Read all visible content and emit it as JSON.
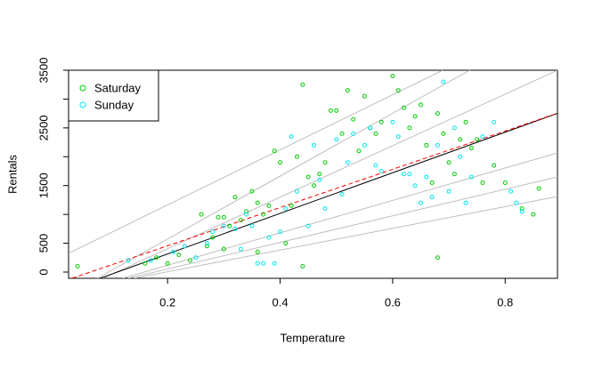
{
  "chart_data": {
    "type": "scatter",
    "xlabel": "Temperature",
    "ylabel": "Rentals",
    "xlim": [
      0.024,
      0.893
    ],
    "ylim": [
      -108,
      3500
    ],
    "xticks": [
      0.2,
      0.4,
      0.6,
      0.8
    ],
    "yticks": [
      0,
      500,
      1500,
      2500,
      3500
    ],
    "yticks_minor": [
      1000,
      2000,
      3000
    ],
    "legend": "top-left",
    "series": [
      {
        "name": "Saturday",
        "color": "#00cd00",
        "x": [
          0.04,
          0.16,
          0.18,
          0.2,
          0.22,
          0.24,
          0.26,
          0.27,
          0.28,
          0.29,
          0.3,
          0.31,
          0.32,
          0.33,
          0.34,
          0.35,
          0.36,
          0.37,
          0.38,
          0.39,
          0.4,
          0.41,
          0.42,
          0.43,
          0.44,
          0.45,
          0.46,
          0.47,
          0.48,
          0.49,
          0.5,
          0.51,
          0.52,
          0.53,
          0.54,
          0.55,
          0.56,
          0.57,
          0.58,
          0.6,
          0.61,
          0.62,
          0.63,
          0.64,
          0.65,
          0.66,
          0.67,
          0.68,
          0.68,
          0.69,
          0.7,
          0.71,
          0.72,
          0.73,
          0.74,
          0.75,
          0.76,
          0.78,
          0.8,
          0.83,
          0.85,
          0.86,
          0.44,
          0.36,
          0.3
        ],
        "values": [
          100,
          150,
          250,
          150,
          300,
          200,
          1000,
          450,
          600,
          950,
          950,
          800,
          1300,
          900,
          1050,
          1400,
          1200,
          1000,
          1150,
          2100,
          1900,
          500,
          1150,
          2000,
          3250,
          1650,
          1500,
          1700,
          1900,
          2800,
          2800,
          2400,
          3150,
          2650,
          2100,
          3050,
          2500,
          2400,
          2600,
          3400,
          3150,
          2850,
          2500,
          2700,
          2900,
          2200,
          1550,
          2750,
          250,
          2400,
          1900,
          1700,
          2300,
          2600,
          2150,
          2300,
          1550,
          1850,
          1550,
          1100,
          1000,
          1450,
          100,
          350,
          400
        ]
      },
      {
        "name": "Sunday",
        "color": "#00e5ee",
        "x": [
          0.13,
          0.17,
          0.21,
          0.23,
          0.25,
          0.27,
          0.28,
          0.3,
          0.32,
          0.33,
          0.34,
          0.35,
          0.36,
          0.37,
          0.38,
          0.39,
          0.4,
          0.41,
          0.42,
          0.43,
          0.45,
          0.46,
          0.47,
          0.48,
          0.5,
          0.51,
          0.52,
          0.53,
          0.55,
          0.56,
          0.57,
          0.58,
          0.6,
          0.61,
          0.62,
          0.63,
          0.64,
          0.65,
          0.66,
          0.67,
          0.68,
          0.69,
          0.7,
          0.71,
          0.72,
          0.73,
          0.74,
          0.76,
          0.78,
          0.81,
          0.82,
          0.83
        ],
        "values": [
          200,
          200,
          350,
          450,
          250,
          500,
          700,
          800,
          750,
          400,
          1000,
          800,
          150,
          150,
          600,
          150,
          700,
          1100,
          2350,
          1400,
          800,
          2200,
          1600,
          1100,
          2300,
          1350,
          1900,
          2400,
          2200,
          2500,
          1850,
          1750,
          2600,
          2350,
          1700,
          1700,
          1500,
          1200,
          1650,
          1300,
          2200,
          3300,
          1400,
          2500,
          2000,
          1200,
          1650,
          2350,
          2600,
          1400,
          1200,
          1050
        ]
      }
    ],
    "lines": [
      {
        "x": [
          0.024,
          0.689
        ],
        "values": [
          324,
          3500
        ],
        "color": "#bebebe"
      },
      {
        "x": [
          0.075,
          0.737
        ],
        "values": [
          -108,
          3500
        ],
        "color": "#bebebe"
      },
      {
        "x": [
          0.085,
          0.893
        ],
        "values": [
          -108,
          3500
        ],
        "color": "#bebebe"
      },
      {
        "x": [
          0.12,
          0.893
        ],
        "values": [
          -108,
          2066
        ],
        "color": "#bebebe"
      },
      {
        "x": [
          0.13,
          0.893
        ],
        "values": [
          -108,
          1650
        ],
        "color": "#bebebe"
      },
      {
        "x": [
          0.14,
          0.893
        ],
        "values": [
          -108,
          1310
        ],
        "color": "#bebebe"
      },
      {
        "x": [
          0.08,
          0.893
        ],
        "values": [
          -108,
          2753
        ],
        "color": "#000000"
      },
      {
        "x": [
          0.03,
          0.893
        ],
        "values": [
          -108,
          2754
        ],
        "color": "#ff0000",
        "dash": true
      }
    ]
  }
}
